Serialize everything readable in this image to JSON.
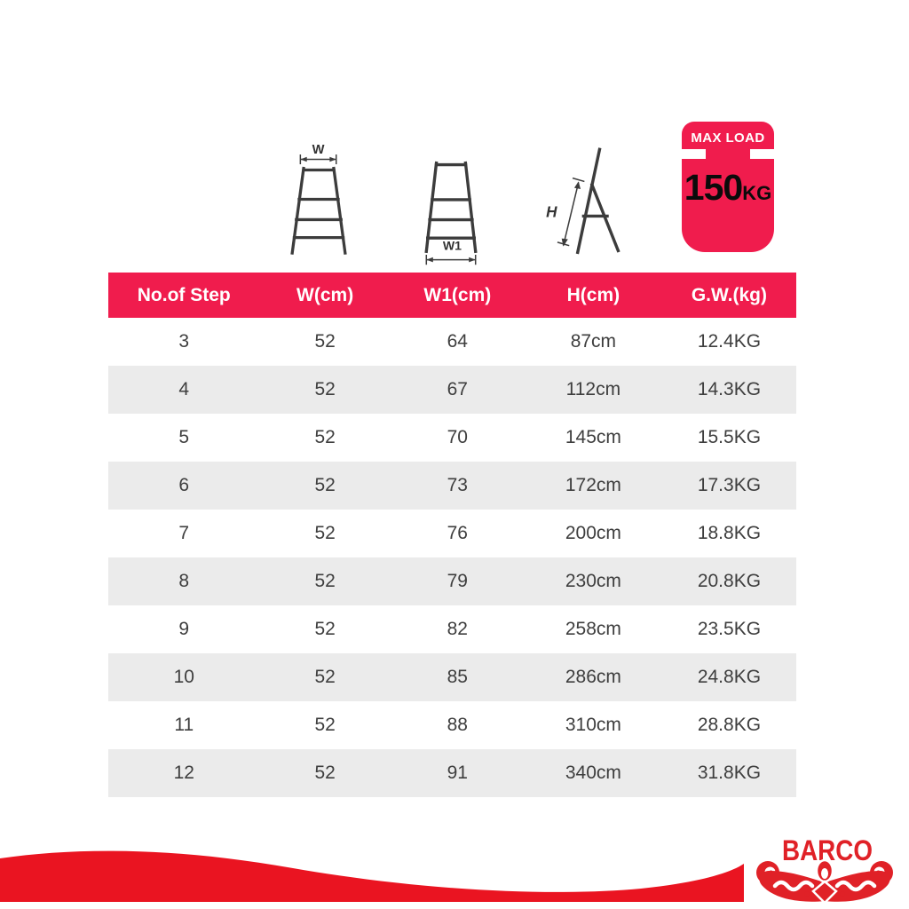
{
  "colors": {
    "crimson": "#F01C4D",
    "brand_red": "#E02127",
    "wave_red": "#EA1421",
    "row_alt_gray": "#EBEBEB",
    "cell_text": "#3E3E3E",
    "diagram_stroke": "#3C3C3C"
  },
  "diagrams": {
    "front_width_label": "W",
    "bottom_width_label": "W1",
    "height_label": "H"
  },
  "badge": {
    "title": "MAX LOAD",
    "value": "150",
    "unit": "KG"
  },
  "table": {
    "headers": [
      "No.of Step",
      "W(cm)",
      "W1(cm)",
      "H(cm)",
      "G.W.(kg)"
    ],
    "rows": [
      [
        "3",
        "52",
        "64",
        "87cm",
        "12.4KG"
      ],
      [
        "4",
        "52",
        "67",
        "112cm",
        "14.3KG"
      ],
      [
        "5",
        "52",
        "70",
        "145cm",
        "15.5KG"
      ],
      [
        "6",
        "52",
        "73",
        "172cm",
        "17.3KG"
      ],
      [
        "7",
        "52",
        "76",
        "200cm",
        "18.8KG"
      ],
      [
        "8",
        "52",
        "79",
        "230cm",
        "20.8KG"
      ],
      [
        "9",
        "52",
        "82",
        "258cm",
        "23.5KG"
      ],
      [
        "10",
        "52",
        "85",
        "286cm",
        "24.8KG"
      ],
      [
        "11",
        "52",
        "88",
        "310cm",
        "28.8KG"
      ],
      [
        "12",
        "52",
        "91",
        "340cm",
        "31.8KG"
      ]
    ]
  },
  "logo": {
    "brand": "BARCO"
  }
}
